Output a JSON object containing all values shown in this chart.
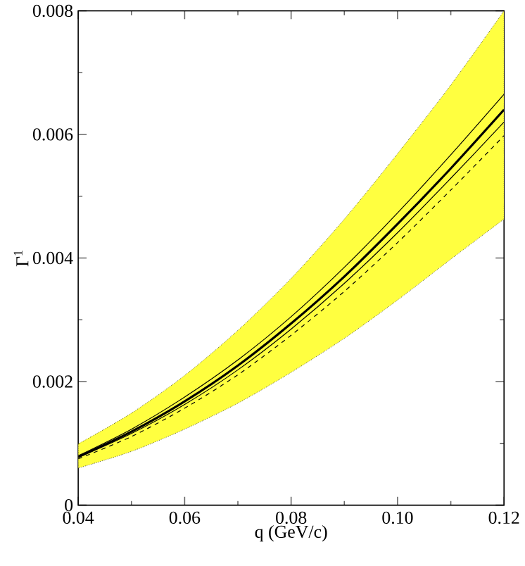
{
  "chart_data": {
    "type": "line",
    "xlabel": "q (GeV/c)",
    "ylabel": "Γ$^{1}$",
    "x": [
      0.04,
      0.05,
      0.06,
      0.07,
      0.08,
      0.09,
      0.1,
      0.11,
      0.12
    ],
    "series": [
      {
        "color": "#000000",
        "line_style": "solid",
        "values": [
          0.00078,
          0.00119,
          0.00168,
          0.00226,
          0.00294,
          0.0037,
          0.00455,
          0.00545,
          0.0064
        ],
        "lower": [
          0.0006,
          0.00087,
          0.00123,
          0.00165,
          0.00215,
          0.0027,
          0.00332,
          0.00398,
          0.00463
        ],
        "upper": [
          0.00099,
          0.00149,
          0.0021,
          0.00283,
          0.00367,
          0.00463,
          0.00569,
          0.0068,
          0.008
        ]
      },
      {
        "color": "#000000",
        "line_style": "solid",
        "values": [
          0.0008,
          0.00123,
          0.00175,
          0.00235,
          0.00305,
          0.00385,
          0.00473,
          0.00567,
          0.00665
        ]
      },
      {
        "color": "#000000",
        "line_style": "solid",
        "values": [
          0.00077,
          0.00116,
          0.00163,
          0.00219,
          0.00285,
          0.00359,
          0.00441,
          0.00529,
          0.0062
        ]
      },
      {
        "color": "#000000",
        "line_style": "dashed",
        "values": [
          0.00075,
          0.00111,
          0.00157,
          0.00211,
          0.00275,
          0.00346,
          0.00425,
          0.0051,
          0.00598
        ]
      }
    ],
    "xlim": [
      0.04,
      0.12
    ],
    "ylim": [
      0,
      0.008
    ],
    "xticks": [
      0.04,
      0.06,
      0.08,
      {
        "value": 0.1,
        "label": "0.10"
      },
      0.12
    ],
    "yticks": [
      0,
      0.002,
      0.004,
      0.006,
      0.008
    ],
    "grid": false,
    "marker": "none"
  }
}
